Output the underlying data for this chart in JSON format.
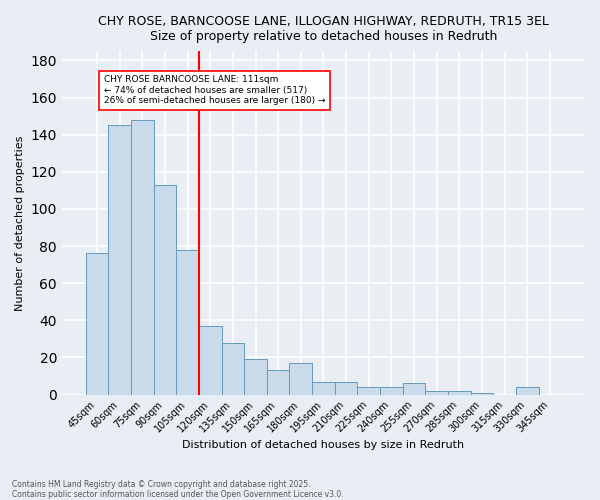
{
  "title_line1": "CHY ROSE, BARNCOOSE LANE, ILLOGAN HIGHWAY, REDRUTH, TR15 3EL",
  "title_line2": "Size of property relative to detached houses in Redruth",
  "xlabel": "Distribution of detached houses by size in Redruth",
  "ylabel": "Number of detached properties",
  "categories": [
    "45sqm",
    "60sqm",
    "75sqm",
    "90sqm",
    "105sqm",
    "120sqm",
    "135sqm",
    "150sqm",
    "165sqm",
    "180sqm",
    "195sqm",
    "210sqm",
    "225sqm",
    "240sqm",
    "255sqm",
    "270sqm",
    "285sqm",
    "300sqm",
    "315sqm",
    "330sqm",
    "345sqm"
  ],
  "values": [
    76,
    145,
    148,
    113,
    78,
    37,
    28,
    19,
    13,
    17,
    7,
    7,
    4,
    4,
    6,
    2,
    2,
    1,
    0,
    4,
    0
  ],
  "bar_color": "#c9daea",
  "bar_edge_color": "#6699bb",
  "red_line_x": 4.5,
  "annotation_text": "CHY ROSE BARNCOOSE LANE: 111sqm\n← 74% of detached houses are smaller (517)\n26% of semi-detached houses are larger (180) →",
  "annotation_box_color": "white",
  "annotation_box_edge": "red",
  "footer_line1": "Contains HM Land Registry data © Crown copyright and database right 2025.",
  "footer_line2": "Contains public sector information licensed under the Open Government Licence v3.0.",
  "ylim": [
    0,
    185
  ],
  "yticks": [
    0,
    20,
    40,
    60,
    80,
    100,
    120,
    140,
    160,
    180
  ],
  "background_color": "#e8eef4",
  "grid_color": "white"
}
